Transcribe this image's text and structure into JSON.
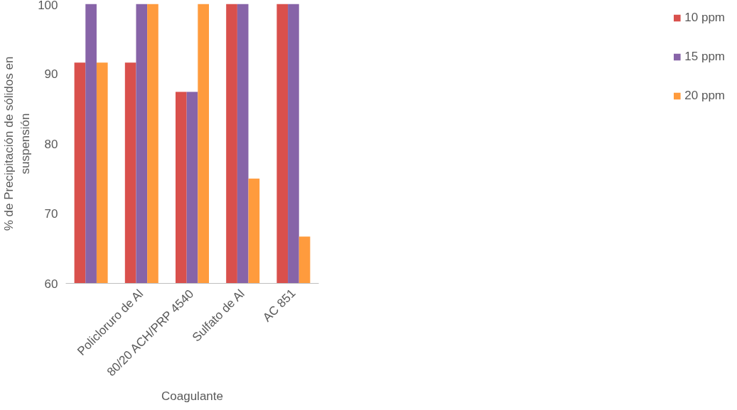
{
  "chart_data": {
    "type": "bar",
    "xlabel": "Coagulante",
    "ylabel": "% de Precipitación de sólidos en suspensión",
    "categories": [
      null,
      "Policloruro de Al",
      "80/20 ACH/PRP 4540",
      "Sulfato de Al",
      "AC 851"
    ],
    "series": [
      {
        "name": "10 ppm",
        "color": "#d9504c",
        "values": [
          91.6,
          91.6,
          87.4,
          100,
          100
        ]
      },
      {
        "name": "15 ppm",
        "color": "#8764a8",
        "values": [
          100,
          100,
          87.4,
          100,
          100
        ]
      },
      {
        "name": "20 ppm",
        "color": "#ff9b3d",
        "values": [
          91.6,
          100,
          100,
          75,
          66.7
        ]
      }
    ],
    "ylim": [
      60,
      100
    ],
    "yticks": [
      60,
      70,
      80,
      90,
      100
    ],
    "grid": false,
    "legend": "right"
  }
}
